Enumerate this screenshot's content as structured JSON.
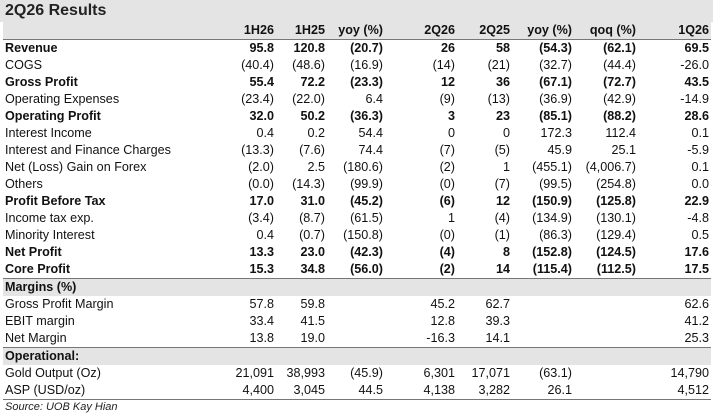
{
  "title": "2Q26 Results",
  "columns": [
    "",
    "1H26",
    "1H25",
    "yoy (%)",
    "2Q26",
    "2Q25",
    "yoy (%)",
    "qoq (%)",
    "1Q26"
  ],
  "sections": [
    {
      "heading": null,
      "rows": [
        {
          "bold": true,
          "cells": [
            "Revenue",
            "95.8",
            "120.8",
            "(20.7)",
            "26",
            "58",
            "(54.3)",
            "(62.1)",
            "69.5"
          ]
        },
        {
          "bold": false,
          "cells": [
            "COGS",
            "(40.4)",
            "(48.6)",
            "(16.9)",
            "(14)",
            "(21)",
            "(32.7)",
            "(44.4)",
            "-26.0"
          ]
        },
        {
          "bold": true,
          "cells": [
            "Gross Profit",
            "55.4",
            "72.2",
            "(23.3)",
            "12",
            "36",
            "(67.1)",
            "(72.7)",
            "43.5"
          ]
        },
        {
          "bold": false,
          "cells": [
            "Operating Expenses",
            "(23.4)",
            "(22.0)",
            "6.4",
            "(9)",
            "(13)",
            "(36.9)",
            "(42.9)",
            "-14.9"
          ]
        },
        {
          "bold": true,
          "cells": [
            "Operating Profit",
            "32.0",
            "50.2",
            "(36.3)",
            "3",
            "23",
            "(85.1)",
            "(88.2)",
            "28.6"
          ]
        },
        {
          "bold": false,
          "cells": [
            "Interest Income",
            "0.4",
            "0.2",
            "54.4",
            "0",
            "0",
            "172.3",
            "112.4",
            "0.1"
          ]
        },
        {
          "bold": false,
          "cells": [
            "Interest and Finance Charges",
            "(13.3)",
            "(7.6)",
            "74.4",
            "(7)",
            "(5)",
            "45.9",
            "25.1",
            "-5.9"
          ]
        },
        {
          "bold": false,
          "cells": [
            "Net (Loss) Gain on Forex",
            "(2.0)",
            "2.5",
            "(180.6)",
            "(2)",
            "1",
            "(455.1)",
            "(4,006.7)",
            "0.1"
          ]
        },
        {
          "bold": false,
          "cells": [
            "Others",
            "(0.0)",
            "(14.3)",
            "(99.9)",
            "(0)",
            "(7)",
            "(99.5)",
            "(254.8)",
            "0.0"
          ]
        },
        {
          "bold": true,
          "cells": [
            "Profit Before Tax",
            "17.0",
            "31.0",
            "(45.2)",
            "(6)",
            "12",
            "(150.9)",
            "(125.8)",
            "22.9"
          ]
        },
        {
          "bold": false,
          "cells": [
            "Income tax exp.",
            "(3.4)",
            "(8.7)",
            "(61.5)",
            "1",
            "(4)",
            "(134.9)",
            "(130.1)",
            "-4.8"
          ]
        },
        {
          "bold": false,
          "cells": [
            "Minority Interest",
            "0.4",
            "(0.7)",
            "(150.8)",
            "(0)",
            "(1)",
            "(86.3)",
            "(129.4)",
            "0.5"
          ]
        },
        {
          "bold": true,
          "cells": [
            "Net Profit",
            "13.3",
            "23.0",
            "(42.3)",
            "(4)",
            "8",
            "(152.8)",
            "(124.5)",
            "17.6"
          ]
        },
        {
          "bold": true,
          "cells": [
            "Core Profit",
            "15.3",
            "34.8",
            "(56.0)",
            "(2)",
            "14",
            "(115.4)",
            "(112.5)",
            "17.5"
          ]
        }
      ]
    },
    {
      "heading": "Margins (%)",
      "rows": [
        {
          "bold": false,
          "cells": [
            "Gross Profit Margin",
            "57.8",
            "59.8",
            "",
            "45.2",
            "62.7",
            "",
            "",
            "62.6"
          ]
        },
        {
          "bold": false,
          "cells": [
            "EBIT margin",
            "33.4",
            "41.5",
            "",
            "12.8",
            "39.3",
            "",
            "",
            "41.2"
          ]
        },
        {
          "bold": false,
          "cells": [
            "Net Margin",
            "13.8",
            "19.0",
            "",
            "-16.3",
            "14.1",
            "",
            "",
            "25.3"
          ]
        }
      ]
    },
    {
      "heading": "Operational:",
      "rows": [
        {
          "bold": false,
          "cells": [
            "Gold Output (Oz)",
            "21,091",
            "38,993",
            "(45.9)",
            "6,301",
            "17,071",
            "(63.1)",
            "",
            "14,790"
          ]
        },
        {
          "bold": false,
          "cells": [
            "ASP (USD/oz)",
            "4,400",
            "3,045",
            "44.5",
            "4,138",
            "3,282",
            "26.1",
            "",
            "4,512"
          ]
        }
      ]
    }
  ],
  "source": "Source: UOB Kay Hian"
}
